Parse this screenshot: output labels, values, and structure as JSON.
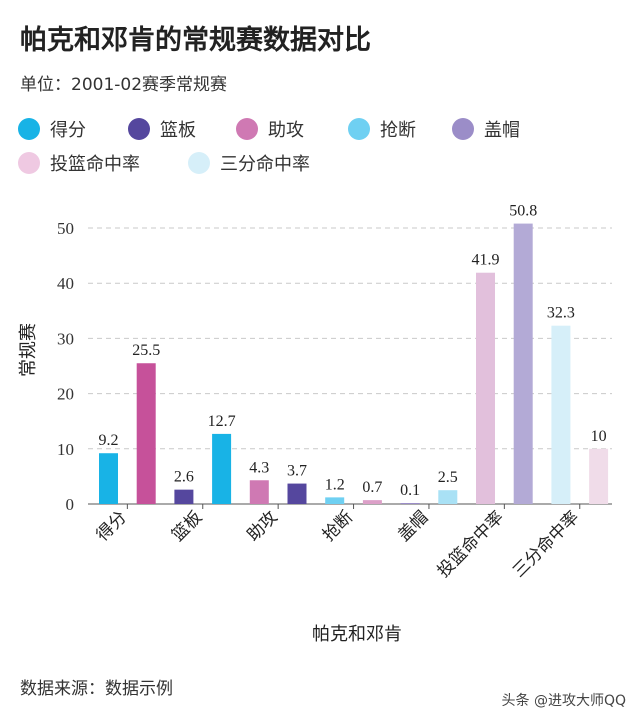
{
  "chart_data": {
    "type": "bar",
    "title": "帕克和邓肯的常规赛数据对比",
    "subtitle": "单位：2001-02赛季常规赛",
    "xlabel": "帕克和邓肯",
    "ylabel": "常规赛",
    "ylim": [
      0,
      55
    ],
    "yticks": [
      0,
      10,
      20,
      30,
      40,
      50
    ],
    "grid": true,
    "legend_position": "top",
    "categories": [
      "得分",
      "篮板",
      "助攻",
      "抢断",
      "盖帽",
      "投篮命中率",
      "三分命中率"
    ],
    "legend": [
      {
        "label": "得分",
        "color": "#18b3e6"
      },
      {
        "label": "篮板",
        "color": "#55479e"
      },
      {
        "label": "助攻",
        "color": "#cf79b3"
      },
      {
        "label": "抢断",
        "color": "#6fd0f2"
      },
      {
        "label": "盖帽",
        "color": "#9b8dc8"
      },
      {
        "label": "投篮命中率",
        "color": "#efc9e2"
      },
      {
        "label": "三分命中率",
        "color": "#d6eff9"
      }
    ],
    "bars": [
      {
        "category": "得分",
        "value": 9.2,
        "label": "9.2",
        "color": "#18b3e6"
      },
      {
        "category": "得分",
        "value": 25.5,
        "label": "25.5",
        "color": "#c6519a"
      },
      {
        "category": "篮板",
        "value": 2.6,
        "label": "2.6",
        "color": "#55479e"
      },
      {
        "category": "篮板",
        "value": 12.7,
        "label": "12.7",
        "color": "#18b3e6"
      },
      {
        "category": "助攻",
        "value": 4.3,
        "label": "4.3",
        "color": "#cf79b3"
      },
      {
        "category": "助攻",
        "value": 3.7,
        "label": "3.7",
        "color": "#55479e"
      },
      {
        "category": "抢断",
        "value": 1.2,
        "label": "1.2",
        "color": "#6fd0f2"
      },
      {
        "category": "抢断",
        "value": 0.7,
        "label": "0.7",
        "color": "#dca0c8"
      },
      {
        "category": "盖帽",
        "value": 0.1,
        "label": "0.1",
        "color": "#9b8dc8"
      },
      {
        "category": "盖帽",
        "value": 2.5,
        "label": "2.5",
        "color": "#a9e1f5"
      },
      {
        "category": "投篮命中率",
        "value": 41.9,
        "label": "41.9",
        "color": "#e2c0dc"
      },
      {
        "category": "投篮命中率",
        "value": 50.8,
        "label": "50.8",
        "color": "#b3aad6"
      },
      {
        "category": "三分命中率",
        "value": 32.3,
        "label": "32.3",
        "color": "#d6eff9"
      },
      {
        "category": "三分命中率",
        "value": 10,
        "label": "10",
        "color": "#f0dce9"
      }
    ]
  },
  "footer": {
    "source": "数据来源：数据示例",
    "watermark": "头条 @进攻大师QQ"
  }
}
